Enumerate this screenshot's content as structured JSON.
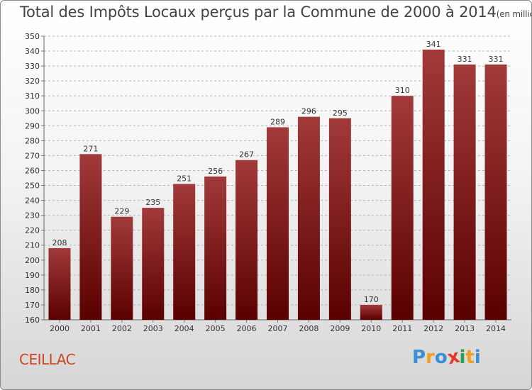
{
  "title": "Total des Impôts Locaux perçus par la Commune de 2000 à 2014",
  "title_unit": "(en milliers d'€)",
  "commune": "CEILLAC",
  "logo": {
    "letters": [
      "P",
      "r",
      "o",
      "x",
      "i",
      "t",
      "i"
    ],
    "colors": [
      "#3a8fd8",
      "#f0a020",
      "#3a8fd8",
      "#e23a2a",
      "#2aa050",
      "#f0a020",
      "#3a8fd8"
    ]
  },
  "colors": {
    "bar_top": "#a23a3a",
    "bar_bottom": "#5a0000",
    "title": "#444444",
    "commune": "#cc4422"
  },
  "chart_data": {
    "type": "bar",
    "title": "Total des Impôts Locaux perçus par la Commune de 2000 à 2014",
    "unit": "(en milliers d'€)",
    "categories": [
      "2000",
      "2001",
      "2002",
      "2003",
      "2004",
      "2005",
      "2006",
      "2007",
      "2008",
      "2009",
      "2010",
      "2011",
      "2012",
      "2013",
      "2014"
    ],
    "values": [
      208,
      271,
      229,
      235,
      251,
      256,
      267,
      289,
      296,
      295,
      170,
      310,
      341,
      331,
      331
    ],
    "ylim": [
      160,
      350
    ],
    "ytick_step": 10,
    "grid": "horizontal dashed",
    "xlabel": "",
    "ylabel": ""
  }
}
